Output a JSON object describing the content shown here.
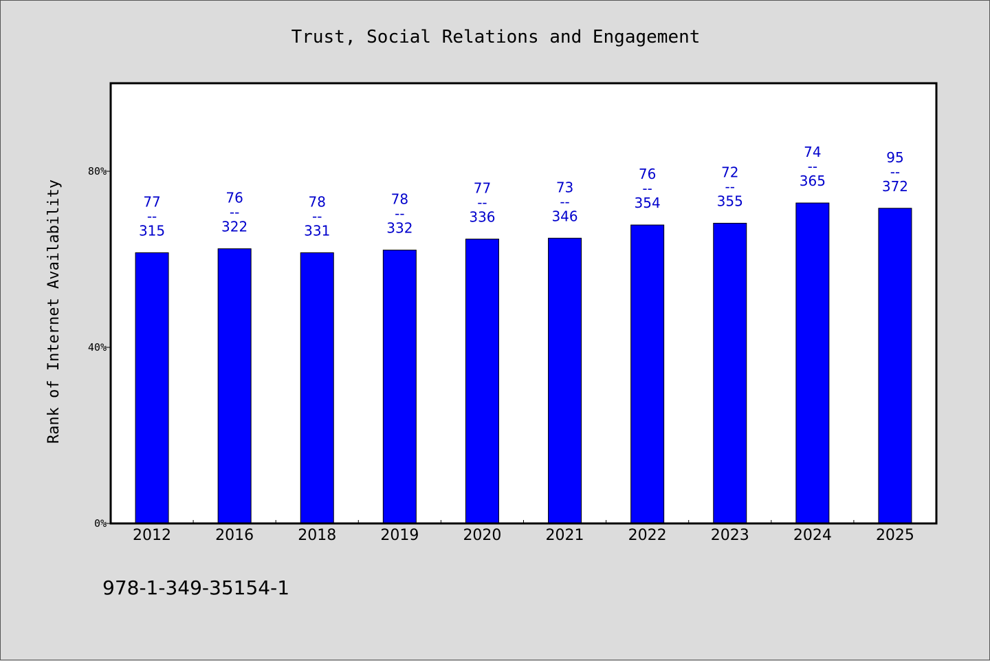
{
  "colors": {
    "background": "#dcdcdc",
    "plot_background": "#ffffff",
    "bar": "#0000ff",
    "data_label": "#0000cc"
  },
  "footer": {
    "text": "978-1-349-35154-1"
  },
  "chart_data": {
    "type": "bar",
    "title": "Trust, Social Relations and Engagement",
    "ylabel": "Rank of Internet Availability",
    "xlabel": "",
    "categories": [
      "2012",
      "2016",
      "2018",
      "2019",
      "2020",
      "2021",
      "2022",
      "2023",
      "2024",
      "2025"
    ],
    "values": [
      61.5,
      62.4,
      61.5,
      62.1,
      64.6,
      64.8,
      67.8,
      68.2,
      72.8,
      71.6
    ],
    "data_labels": [
      {
        "top": "77",
        "sep": "--",
        "bottom": "315"
      },
      {
        "top": "76",
        "sep": "--",
        "bottom": "322"
      },
      {
        "top": "78",
        "sep": "--",
        "bottom": "331"
      },
      {
        "top": "78",
        "sep": "--",
        "bottom": "332"
      },
      {
        "top": "77",
        "sep": "--",
        "bottom": "336"
      },
      {
        "top": "73",
        "sep": "--",
        "bottom": "346"
      },
      {
        "top": "76",
        "sep": "--",
        "bottom": "354"
      },
      {
        "top": "72",
        "sep": "--",
        "bottom": "355"
      },
      {
        "top": "74",
        "sep": "--",
        "bottom": "365"
      },
      {
        "top": "95",
        "sep": "--",
        "bottom": "372"
      }
    ],
    "yticks": [
      0,
      40,
      80
    ],
    "ytick_labels": [
      "0%",
      "40%",
      "80%"
    ],
    "ylim": [
      0,
      100
    ],
    "grid": false,
    "legend": "none"
  }
}
